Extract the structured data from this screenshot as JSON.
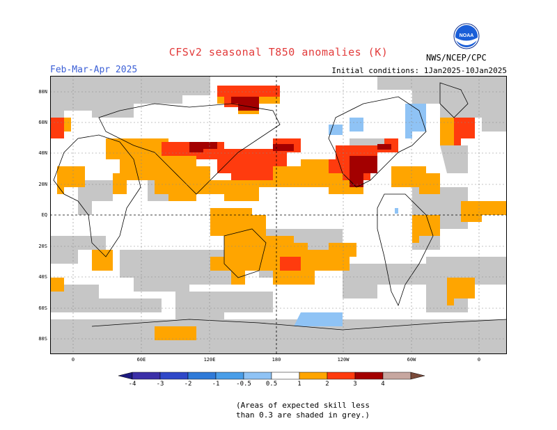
{
  "title": "CFSv2 seasonal T850 anomalies (K)",
  "season": "Feb-Mar-Apr 2025",
  "initial_conditions": "Initial conditions: 1Jan2025-10Jan2025",
  "agency": "NWS/NCEP/CPC",
  "logo": {
    "text": "NOAA",
    "icon": "noaa-logo-icon"
  },
  "lat_labels": [
    "80N",
    "60N",
    "40N",
    "20N",
    "EQ",
    "20S",
    "40S",
    "60S",
    "80S"
  ],
  "lon_labels": [
    "0",
    "60E",
    "120E",
    "180",
    "120W",
    "60W",
    "0"
  ],
  "colorbar": {
    "labels": [
      "-4",
      "-3",
      "-2",
      "-1",
      "-0.5",
      "0.5",
      "1",
      "2",
      "3",
      "4"
    ],
    "colors": [
      "#3b2fa8",
      "#2f48c8",
      "#2f7ad8",
      "#4a9ee8",
      "#8fc3f5",
      "#ffffff",
      "#ffa500",
      "#ff3b0e",
      "#a30000",
      "#c7a7a0",
      "#7a4a3a"
    ]
  },
  "note_lines": [
    "(Areas of expected skill less",
    "than 0.3 are shaded in grey.)"
  ],
  "colors": {
    "grey": "#c6c6c6",
    "orange": "#ffa500",
    "red_orange": "#ff3b0e",
    "dark_red": "#a30000",
    "light_blue": "#8fc3f5",
    "blue": "#4a9ee8"
  }
}
